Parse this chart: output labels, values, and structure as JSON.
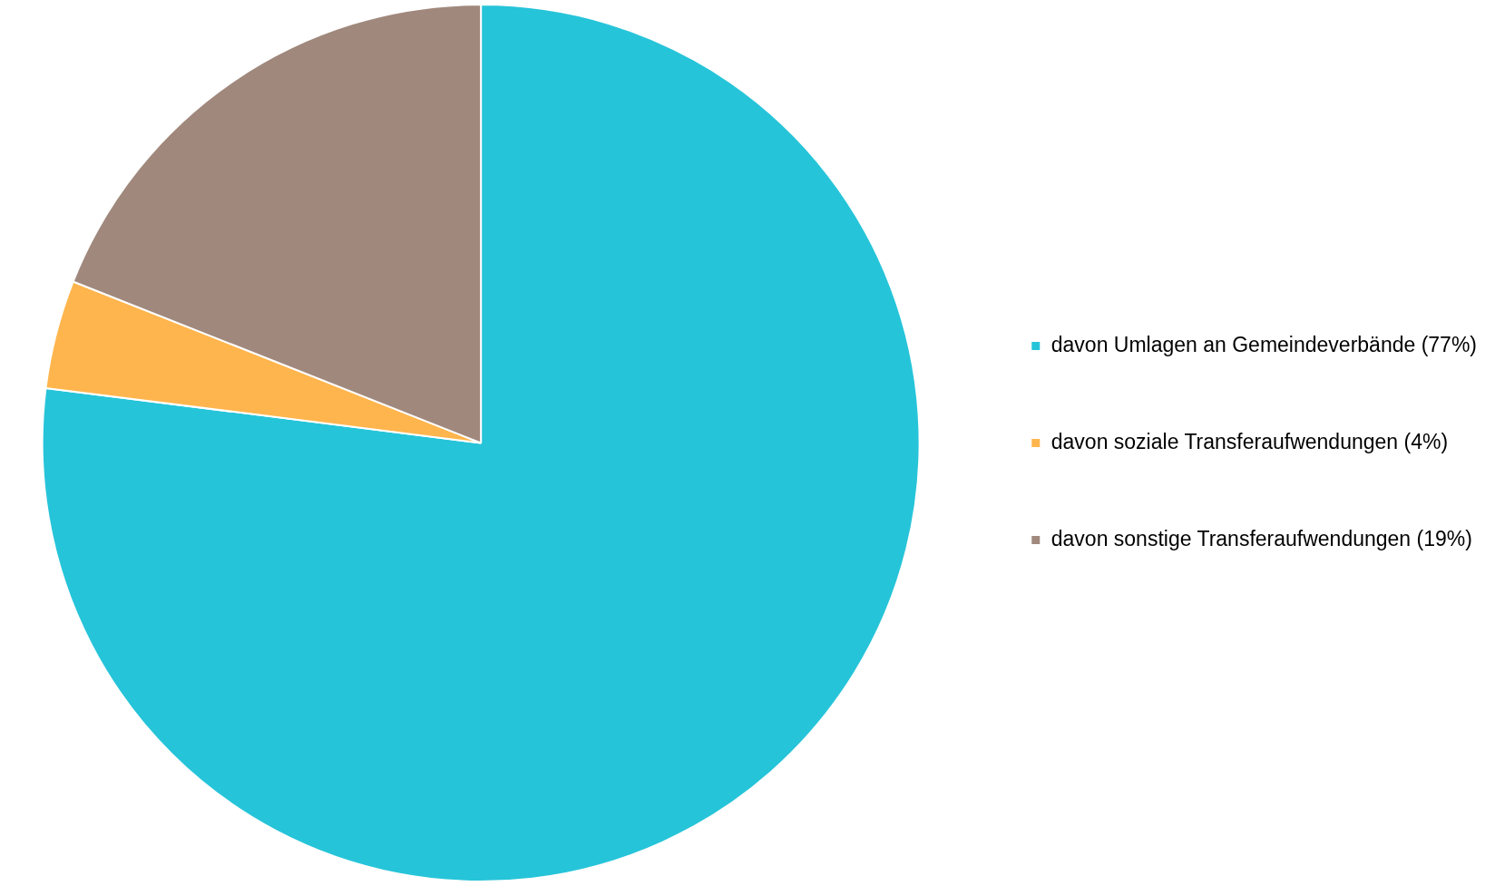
{
  "chart_data": {
    "type": "pie",
    "categories": [
      "davon Umlagen an Gemeindeverbände (77%)",
      "davon soziale Transferaufwendungen (4%)",
      "davon sonstige Transferaufwendungen (19%)"
    ],
    "values": [
      77,
      4,
      19
    ],
    "colors": [
      "#26c4d9",
      "#ffb54d",
      "#a0887d"
    ],
    "legend": "right"
  }
}
